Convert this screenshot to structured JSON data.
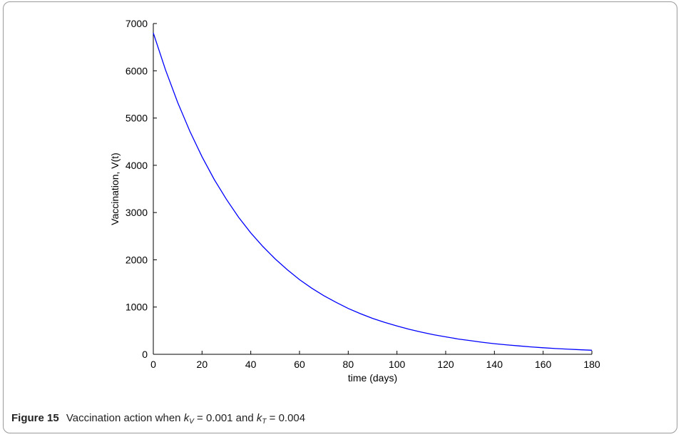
{
  "chart_data": {
    "type": "line",
    "xlabel": "time (days)",
    "ylabel": "Vaccination, V(t)",
    "xlim": [
      0,
      180
    ],
    "ylim": [
      0,
      7000
    ],
    "xticks": [
      0,
      20,
      40,
      60,
      80,
      100,
      120,
      140,
      160,
      180
    ],
    "yticks": [
      0,
      1000,
      2000,
      3000,
      4000,
      5000,
      6000,
      7000
    ],
    "grid": false,
    "series": [
      {
        "color": "#0000ff",
        "x": [
          0,
          5,
          10,
          15,
          20,
          25,
          30,
          35,
          40,
          45,
          50,
          55,
          60,
          65,
          70,
          75,
          80,
          85,
          90,
          95,
          100,
          105,
          110,
          115,
          120,
          125,
          130,
          135,
          140,
          145,
          150,
          155,
          160,
          165,
          170,
          175,
          180
        ],
        "y": [
          6800,
          6020,
          5330,
          4720,
          4180,
          3700,
          3280,
          2900,
          2570,
          2280,
          2020,
          1790,
          1580,
          1400,
          1240,
          1100,
          970,
          860,
          760,
          675,
          600,
          530,
          470,
          415,
          370,
          325,
          290,
          255,
          225,
          200,
          178,
          157,
          139,
          123,
          109,
          97,
          86
        ]
      }
    ]
  },
  "caption": {
    "label": "Figure 15",
    "text_before": "Vaccination action when",
    "kv_symbol": "k",
    "kv_sub": "V",
    "kv_eq": " = 0.001 and ",
    "kt_symbol": "k",
    "kt_sub": "T",
    "kt_eq": " = 0.004"
  }
}
